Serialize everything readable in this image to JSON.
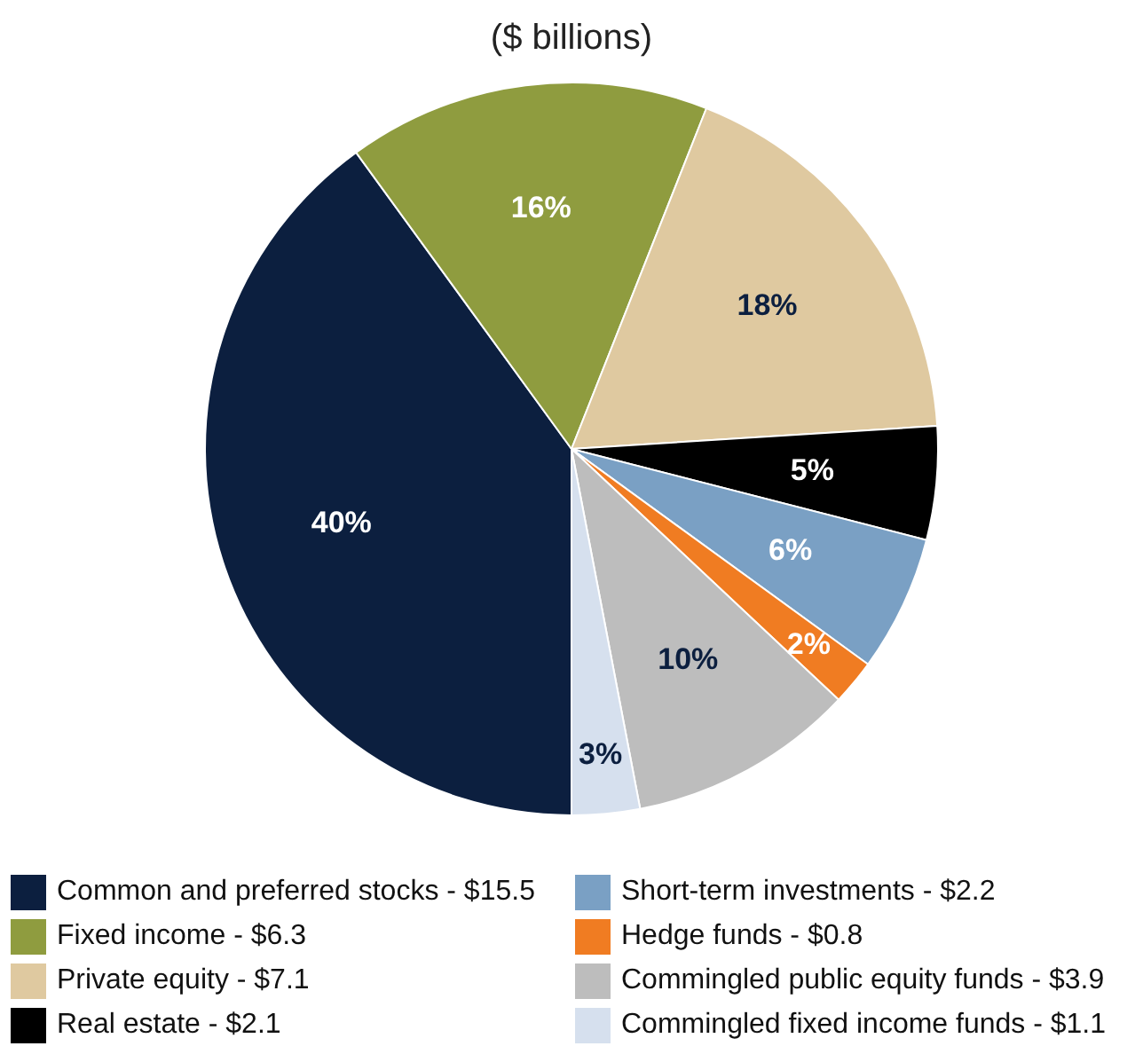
{
  "chart_data": {
    "type": "pie",
    "title": "($ billions)",
    "categories": [
      "Common and preferred stocks - $15.5",
      "Fixed income - $6.3",
      "Private equity - $7.1",
      "Real estate - $2.1",
      "Short-term investments - $2.2",
      "Hedge funds - $0.8",
      "Commingled public equity funds - $3.9",
      "Commingled fixed income funds - $1.1"
    ],
    "values": [
      40,
      16,
      18,
      5,
      6,
      2,
      10,
      3
    ],
    "value_labels": [
      "40%",
      "16%",
      "18%",
      "5%",
      "6%",
      "2%",
      "10%",
      "3%"
    ],
    "colors": [
      "#0c1f3f",
      "#8f9c3f",
      "#dfc9a0",
      "#000000",
      "#7aa0c4",
      "#f07c22",
      "#bdbdbd",
      "#d6e0ee"
    ],
    "legend": "bottom"
  }
}
